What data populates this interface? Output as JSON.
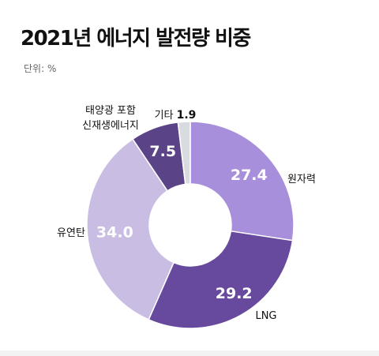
{
  "header": {
    "title": "2021년 에너지 발전량 비중",
    "unit": "단위: %"
  },
  "chart_data": {
    "type": "pie",
    "variant": "donut",
    "title": "2021년 에너지 발전량 비중",
    "unit_label": "단위: %",
    "slices": [
      {
        "label": "원자력",
        "value": 27.4,
        "color": "#a88fdb",
        "value_label_color": "#ffffff"
      },
      {
        "label": "LNG",
        "value": 29.2,
        "color": "#674a9d",
        "value_label_color": "#ffffff"
      },
      {
        "label": "유연탄",
        "value": 34.0,
        "color": "#c9bde3",
        "value_label_color": "#ffffff"
      },
      {
        "label": "태양광 포함\n신재생에너지",
        "value": 7.5,
        "color": "#5a4487",
        "value_label_color": "#ffffff"
      },
      {
        "label": "기타",
        "value": 1.9,
        "color": "#d8dbe0",
        "value_label_color": "#111111"
      }
    ]
  }
}
